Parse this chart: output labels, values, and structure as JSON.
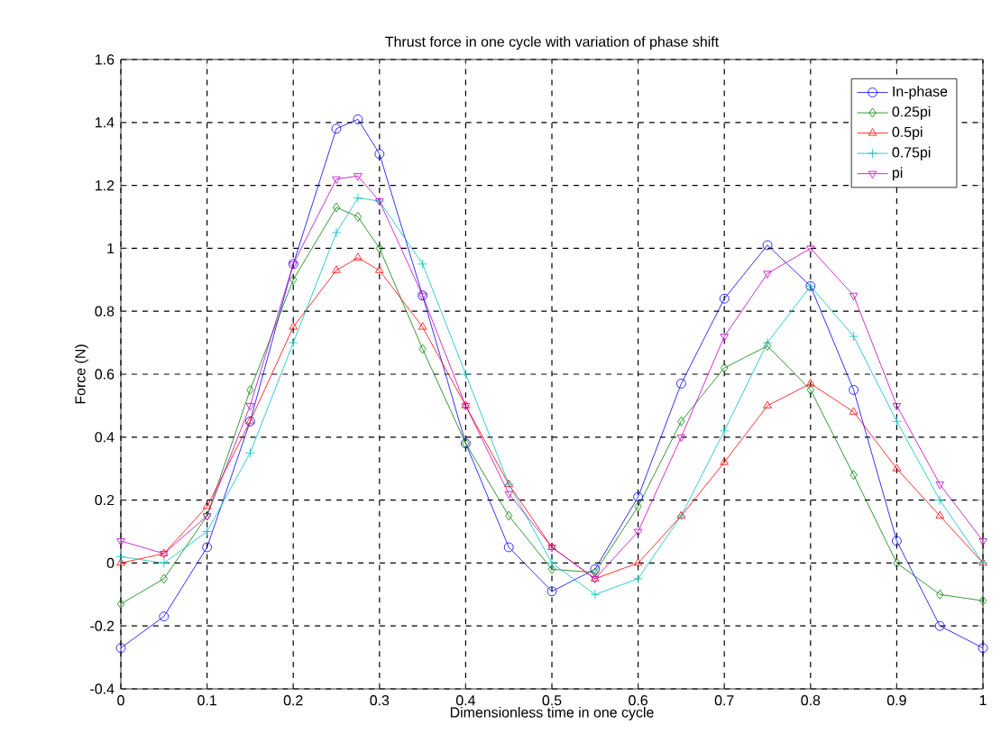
{
  "chart_data": {
    "type": "line",
    "title": "Thrust force in one cycle with variation of phase shift",
    "xlabel": "Dimensionless time in one cycle",
    "ylabel": "Force (N)",
    "xlim": [
      0,
      1
    ],
    "ylim": [
      -0.4,
      1.6
    ],
    "xticks": [
      0,
      0.1,
      0.2,
      0.3,
      0.4,
      0.5,
      0.6,
      0.7,
      0.8,
      0.9,
      1
    ],
    "yticks": [
      -0.4,
      -0.2,
      0,
      0.2,
      0.4,
      0.6,
      0.8,
      1,
      1.2,
      1.4,
      1.6
    ],
    "grid": true,
    "legend": "top right",
    "line_style": "solid",
    "x": [
      0,
      0.05,
      0.1,
      0.15,
      0.2,
      0.25,
      0.275,
      0.3,
      0.35,
      0.4,
      0.45,
      0.5,
      0.55,
      0.6,
      0.65,
      0.7,
      0.75,
      0.8,
      0.85,
      0.9,
      0.95,
      1
    ],
    "series": [
      {
        "name": "In-phase",
        "color": "#0000ff",
        "marker": "circle",
        "values": [
          -0.27,
          -0.17,
          0.05,
          0.45,
          0.95,
          1.38,
          1.41,
          1.3,
          0.85,
          0.38,
          0.05,
          -0.09,
          -0.02,
          0.21,
          0.57,
          0.84,
          1.01,
          0.88,
          0.55,
          0.07,
          -0.2,
          -0.27
        ]
      },
      {
        "name": "0.25pi",
        "color": "#008000",
        "marker": "diamond",
        "values": [
          -0.13,
          -0.05,
          0.15,
          0.55,
          0.9,
          1.13,
          1.1,
          1.0,
          0.68,
          0.38,
          0.15,
          -0.02,
          -0.03,
          0.18,
          0.45,
          0.62,
          0.69,
          0.55,
          0.28,
          0.0,
          -0.1,
          -0.12
        ]
      },
      {
        "name": "0.5pi",
        "color": "#ff0000",
        "marker": "triangle",
        "values": [
          0.0,
          0.03,
          0.18,
          0.45,
          0.75,
          0.93,
          0.97,
          0.93,
          0.75,
          0.5,
          0.25,
          0.05,
          -0.05,
          0.0,
          0.15,
          0.32,
          0.5,
          0.57,
          0.48,
          0.3,
          0.15,
          0.0
        ]
      },
      {
        "name": "0.75pi",
        "color": "#00bfbf",
        "marker": "cross",
        "values": [
          0.02,
          0.0,
          0.1,
          0.35,
          0.7,
          1.05,
          1.16,
          1.15,
          0.95,
          0.6,
          0.25,
          0.0,
          -0.1,
          -0.05,
          0.15,
          0.42,
          0.7,
          0.88,
          0.72,
          0.45,
          0.2,
          0.0
        ]
      },
      {
        "name": "pi",
        "color": "#bf00bf",
        "marker": "triangle-down",
        "values": [
          0.07,
          0.03,
          0.15,
          0.5,
          0.95,
          1.22,
          1.23,
          1.15,
          0.85,
          0.5,
          0.22,
          0.05,
          -0.05,
          0.1,
          0.4,
          0.72,
          0.92,
          1.0,
          0.85,
          0.5,
          0.25,
          0.07
        ]
      }
    ]
  }
}
